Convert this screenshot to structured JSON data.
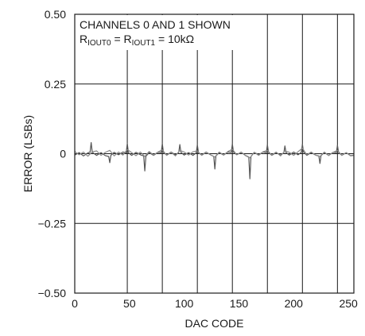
{
  "chart_data": {
    "type": "line",
    "title": "",
    "xlabel": "DAC CODE",
    "ylabel": "ERROR (LSBs)",
    "xlim": [
      0,
      255
    ],
    "ylim": [
      -0.5,
      0.5
    ],
    "x_ticks": [
      {
        "value": 0,
        "label": "0"
      },
      {
        "value": 50,
        "label": "50"
      },
      {
        "value": 100,
        "label": "100"
      },
      {
        "value": 150,
        "label": "150"
      },
      {
        "value": 200,
        "label": "200"
      },
      {
        "value": 250,
        "label": "250"
      }
    ],
    "y_ticks": [
      {
        "value": 0.5,
        "label": "0.50"
      },
      {
        "value": 0.25,
        "label": "0.25"
      },
      {
        "value": 0,
        "label": "0"
      },
      {
        "value": -0.25,
        "label": "−0.25"
      },
      {
        "value": -0.5,
        "label": "−0.50"
      }
    ],
    "grid": true,
    "x_grid": [
      48,
      80,
      112,
      144,
      176,
      208,
      240
    ],
    "y_grid": [
      0.25,
      0,
      -0.25
    ],
    "annotation": {
      "line1": "CHANNELS 0 AND 1 SHOWN",
      "line2": {
        "r1": "R",
        "s1": "IOUT0",
        "eq": " = ",
        "r2": "R",
        "s2": "IOUT1",
        "value": " = 10kΩ"
      }
    },
    "series": [
      {
        "color": "#555555",
        "x": [
          0,
          4,
          8,
          12,
          14,
          15,
          16,
          20,
          24,
          28,
          31,
          32,
          33,
          36,
          40,
          44,
          47,
          48,
          49,
          52,
          56,
          60,
          63,
          64,
          65,
          68,
          72,
          76,
          79,
          80,
          81,
          84,
          88,
          92,
          95,
          96,
          97,
          100,
          104,
          108,
          111,
          112,
          113,
          116,
          120,
          124,
          127,
          128,
          129,
          132,
          136,
          140,
          143,
          144,
          145,
          148,
          152,
          156,
          159,
          160,
          161,
          164,
          168,
          172,
          175,
          176,
          177,
          180,
          184,
          188,
          191,
          192,
          193,
          196,
          200,
          204,
          207,
          208,
          209,
          212,
          216,
          220,
          223,
          224,
          225,
          228,
          232,
          236,
          239,
          240,
          241,
          244,
          248,
          252,
          255
        ],
        "y": [
          -0.005,
          0.004,
          -0.008,
          0.003,
          0.006,
          0.04,
          0.005,
          -0.006,
          0.004,
          -0.007,
          -0.01,
          -0.032,
          -0.006,
          0.005,
          -0.004,
          0.006,
          0.003,
          0.037,
          0.004,
          -0.006,
          0.005,
          -0.004,
          -0.008,
          -0.062,
          -0.009,
          0.004,
          -0.006,
          0.005,
          0.004,
          0.036,
          0.005,
          -0.005,
          0.006,
          -0.004,
          0.004,
          0.033,
          0.005,
          -0.005,
          0.004,
          -0.006,
          0.003,
          0.032,
          0.004,
          -0.005,
          0.006,
          -0.004,
          -0.01,
          -0.055,
          -0.008,
          0.004,
          -0.005,
          0.006,
          0.005,
          0.035,
          0.006,
          -0.004,
          0.005,
          -0.006,
          -0.012,
          -0.09,
          -0.01,
          0.005,
          -0.004,
          0.006,
          0.004,
          0.032,
          0.005,
          -0.006,
          0.004,
          -0.005,
          0.003,
          0.028,
          0.004,
          -0.005,
          0.006,
          -0.004,
          0.005,
          0.034,
          0.006,
          -0.006,
          0.004,
          -0.005,
          -0.008,
          -0.035,
          -0.007,
          0.004,
          -0.006,
          0.005,
          0.004,
          0.03,
          0.005,
          -0.006,
          0.004,
          -0.007,
          -0.005
        ]
      },
      {
        "color": "#8a8a8a",
        "x": [
          0,
          4,
          8,
          12,
          16,
          20,
          24,
          28,
          32,
          36,
          40,
          44,
          48,
          52,
          56,
          60,
          64,
          68,
          72,
          76,
          80,
          84,
          88,
          92,
          96,
          100,
          104,
          108,
          112,
          116,
          120,
          124,
          128,
          132,
          136,
          140,
          144,
          148,
          152,
          156,
          160,
          164,
          168,
          172,
          176,
          180,
          184,
          188,
          192,
          196,
          200,
          204,
          208,
          212,
          216,
          220,
          224,
          228,
          232,
          236,
          240,
          244,
          248,
          252,
          255
        ],
        "y": [
          0.008,
          -0.004,
          0.006,
          -0.009,
          0.007,
          0.01,
          -0.006,
          0.005,
          0.012,
          -0.008,
          0.006,
          -0.005,
          0.015,
          0.004,
          -0.007,
          0.006,
          -0.01,
          0.008,
          -0.005,
          0.006,
          0.014,
          -0.006,
          0.005,
          -0.008,
          0.012,
          0.006,
          -0.005,
          0.007,
          0.01,
          -0.006,
          0.005,
          -0.004,
          -0.012,
          0.006,
          -0.005,
          0.008,
          0.016,
          -0.004,
          0.006,
          -0.007,
          -0.015,
          0.005,
          -0.006,
          0.007,
          0.012,
          -0.005,
          0.006,
          -0.008,
          0.01,
          0.005,
          -0.006,
          0.007,
          0.02,
          -0.004,
          0.006,
          -0.005,
          -0.01,
          0.006,
          -0.007,
          0.005,
          0.012,
          -0.006,
          0.004,
          -0.008,
          -0.006
        ]
      }
    ]
  }
}
